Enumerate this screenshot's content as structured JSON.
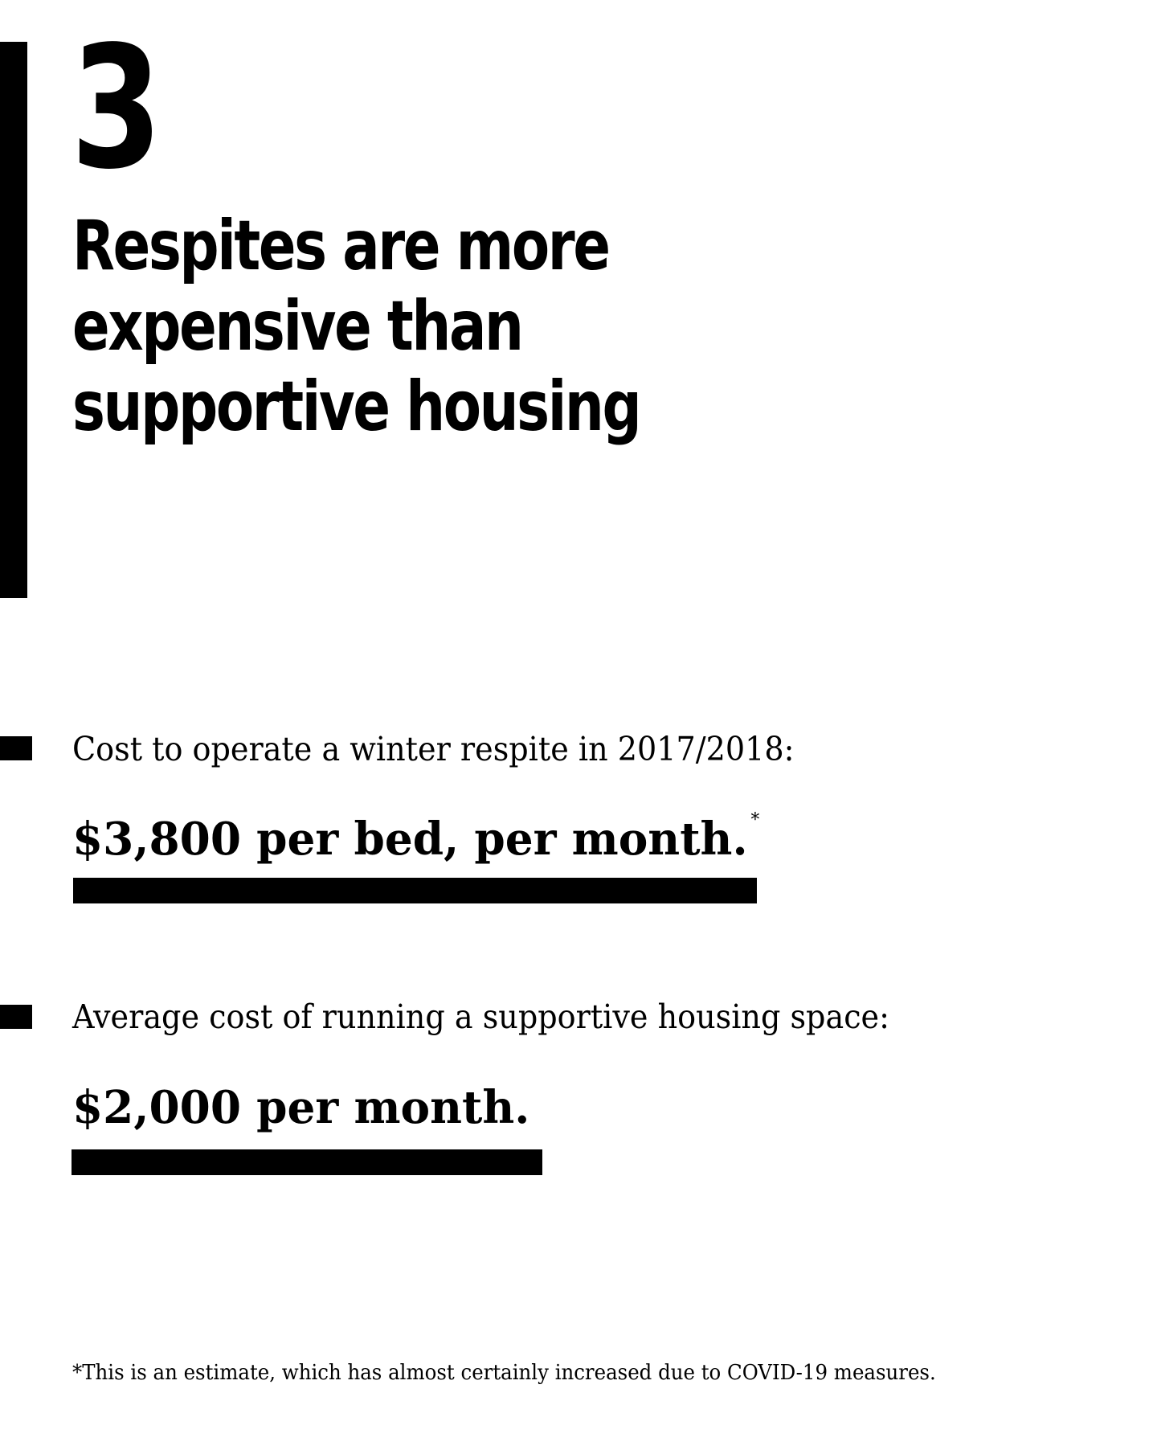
{
  "section": {
    "number": "3",
    "headline_lines": [
      "Respites are more",
      "expensive than",
      "supportive housing"
    ]
  },
  "stats": [
    {
      "label": "Cost to operate a winter respite in 2017/2018:",
      "value": "$3,800 per bed, per month.",
      "footnote_marker": "*"
    },
    {
      "label": "Average cost of running a supportive housing space:",
      "value": "$2,000 per month."
    }
  ],
  "footnote": "*This is an estimate, which has almost certainly increased due to COVID-19 measures."
}
